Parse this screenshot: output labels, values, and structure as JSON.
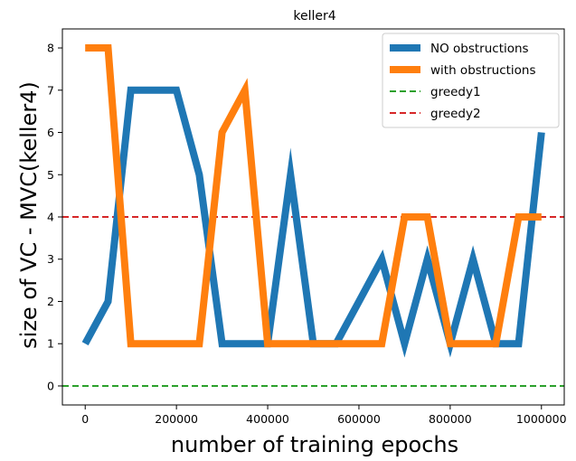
{
  "chart_data": {
    "type": "line",
    "title": "keller4",
    "xlabel": "number of training epochs",
    "ylabel": "size of VC - MVC(keller4)",
    "xlim": [
      -50000,
      1050000
    ],
    "ylim": [
      -0.45,
      8.45
    ],
    "xticks": [
      0,
      200000,
      400000,
      600000,
      800000,
      1000000
    ],
    "xtick_labels": [
      "0",
      "200000",
      "400000",
      "600000",
      "800000",
      "1000000"
    ],
    "yticks": [
      0,
      1,
      2,
      3,
      4,
      5,
      6,
      7,
      8
    ],
    "ytick_labels": [
      "0",
      "1",
      "2",
      "3",
      "4",
      "5",
      "6",
      "7",
      "8"
    ],
    "grid": false,
    "legend_position": "top-right",
    "series": [
      {
        "name": "NO obstructions",
        "color": "#1f77b4",
        "style": "solid",
        "x": [
          0,
          50000,
          100000,
          150000,
          200000,
          250000,
          300000,
          350000,
          400000,
          450000,
          500000,
          550000,
          600000,
          650000,
          700000,
          750000,
          800000,
          850000,
          900000,
          950000,
          1000000
        ],
        "y": [
          1,
          2,
          7,
          7,
          7,
          5,
          1,
          1,
          1,
          5,
          1,
          1,
          2,
          3,
          1,
          3,
          1,
          3,
          1,
          1,
          6
        ]
      },
      {
        "name": "with obstructions",
        "color": "#ff7f0e",
        "style": "solid",
        "x": [
          0,
          50000,
          100000,
          150000,
          200000,
          250000,
          300000,
          350000,
          400000,
          450000,
          500000,
          550000,
          600000,
          650000,
          700000,
          750000,
          800000,
          850000,
          900000,
          950000,
          1000000
        ],
        "y": [
          8,
          8,
          1,
          1,
          1,
          1,
          6,
          7,
          1,
          1,
          1,
          1,
          1,
          1,
          4,
          4,
          1,
          1,
          1,
          4,
          4
        ]
      },
      {
        "name": "greedy1",
        "color": "#2ca02c",
        "style": "dashed",
        "y_const": 0
      },
      {
        "name": "greedy2",
        "color": "#d62728",
        "style": "dashed",
        "y_const": 4
      }
    ]
  }
}
